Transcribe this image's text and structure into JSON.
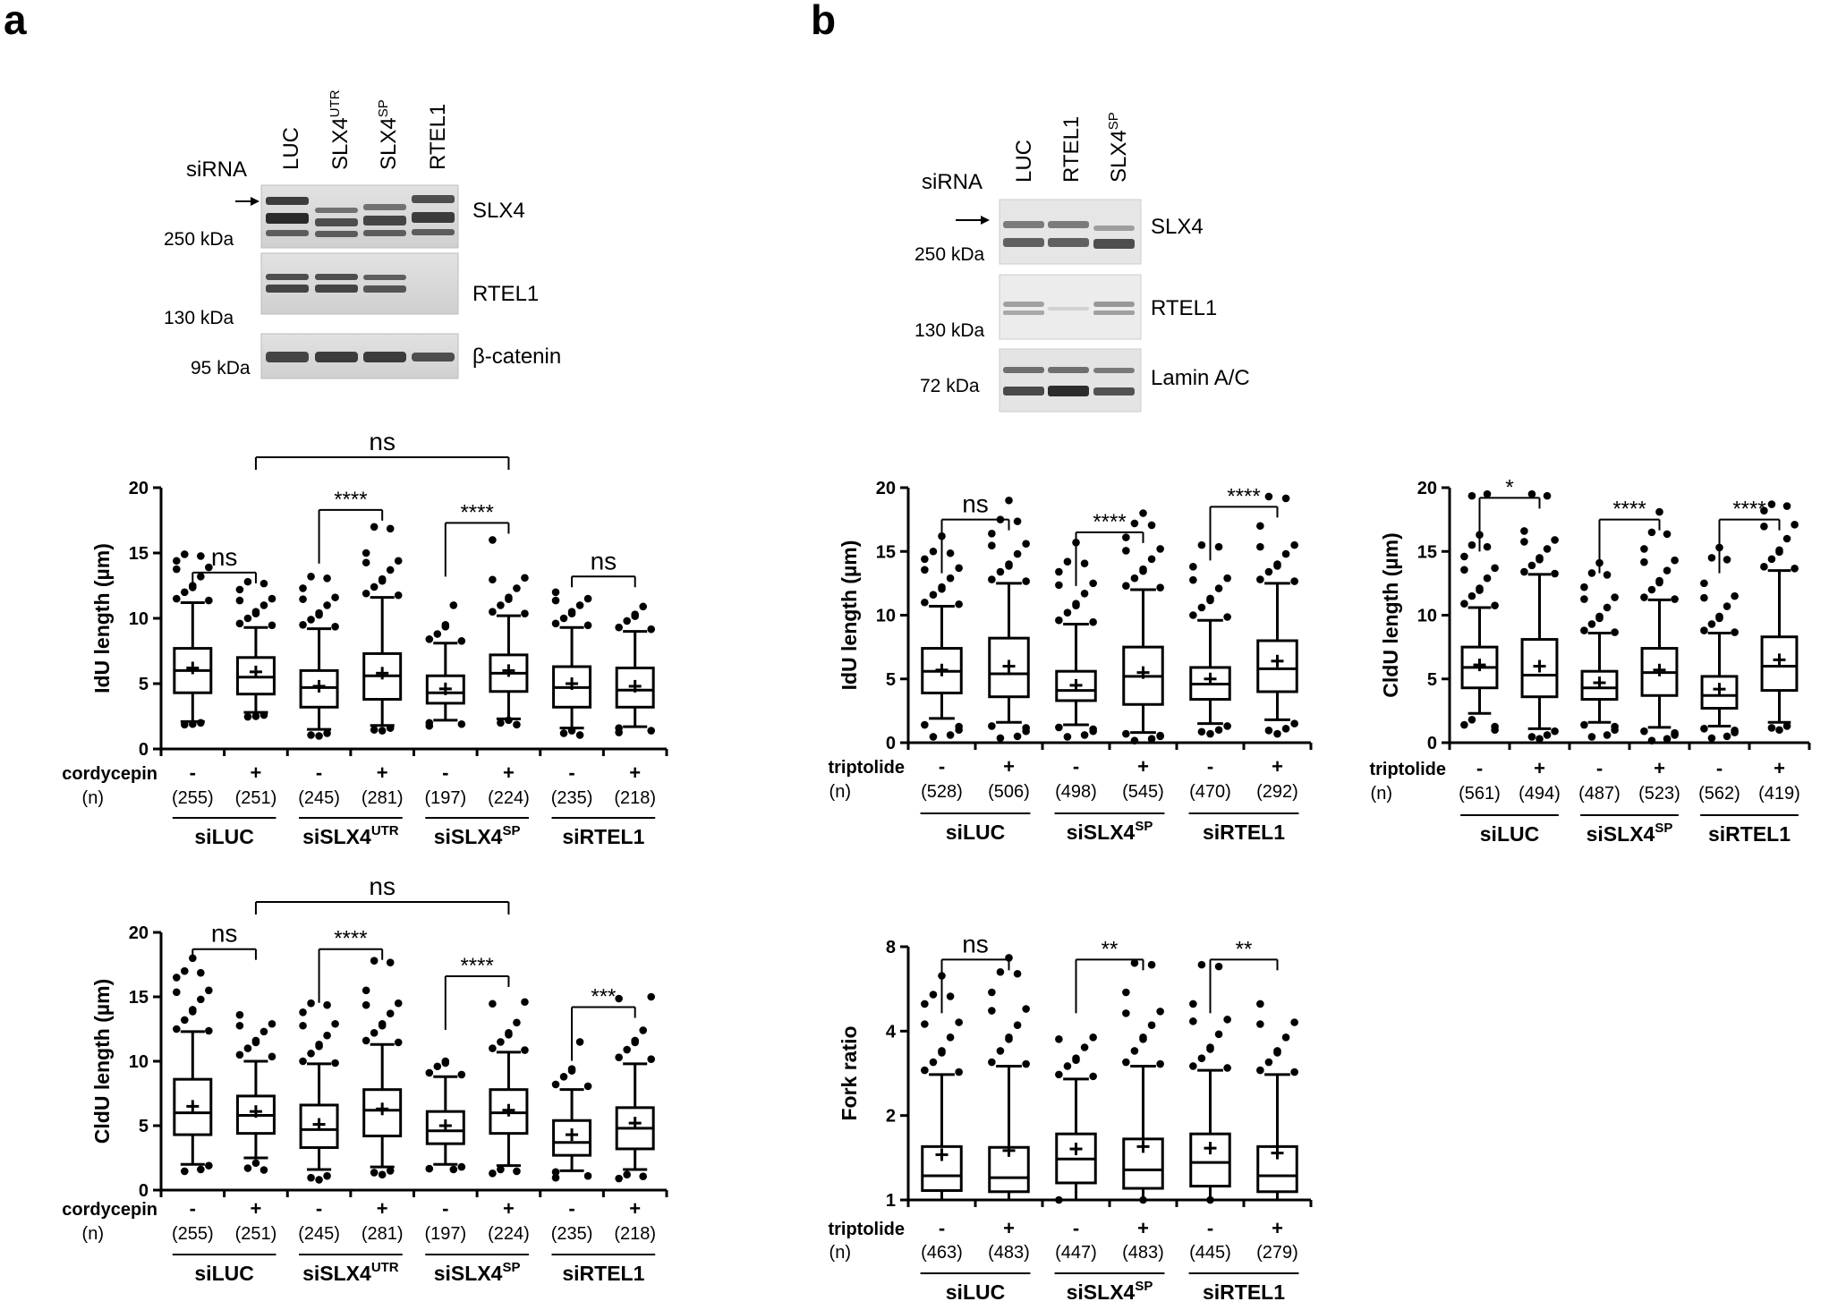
{
  "panel_a": {
    "letter": "a",
    "blot": {
      "row_label": "siRNA",
      "lanes": [
        "LUC",
        "SLX4",
        "SLX4",
        "RTEL1"
      ],
      "lane_sups": [
        "",
        "UTR",
        "SP",
        ""
      ],
      "bands": [
        "SLX4",
        "RTEL1",
        "β-catenin"
      ],
      "mw": [
        "250 kDa",
        "130 kDa",
        "95 kDa"
      ]
    }
  },
  "panel_b": {
    "letter": "b",
    "blot": {
      "row_label": "siRNA",
      "lanes": [
        "LUC",
        "RTEL1",
        "SLX4"
      ],
      "lane_sups": [
        "",
        "",
        "SP"
      ],
      "bands": [
        "SLX4",
        "RTEL1",
        "Lamin A/C"
      ],
      "mw": [
        "250 kDa",
        "130 kDa",
        "72 kDa"
      ]
    }
  },
  "chart_data": [
    {
      "id": "a-idu",
      "type": "box",
      "ylabel": "IdU length (µm)",
      "ylim": [
        0,
        20
      ],
      "yticks": [
        0,
        5,
        10,
        15,
        20
      ],
      "treatment_label": "cordycepin",
      "n_label": "(n)",
      "signs": [
        "-",
        "+",
        "-",
        "+",
        "-",
        "+",
        "-",
        "+"
      ],
      "n": [
        "(255)",
        "(251)",
        "(245)",
        "(281)",
        "(197)",
        "(224)",
        "(235)",
        "(218)"
      ],
      "groups": [
        {
          "name": "siLUC",
          "sup": ""
        },
        {
          "name": "siSLX4",
          "sup": "UTR"
        },
        {
          "name": "siSLX4",
          "sup": "SP"
        },
        {
          "name": "siRTEL1",
          "sup": ""
        }
      ],
      "boxes": [
        {
          "lw": 2.1,
          "q1": 4.3,
          "med": 6.0,
          "q3": 7.7,
          "uw": 11.2,
          "mean": 6.2
        },
        {
          "lw": 2.8,
          "q1": 4.2,
          "med": 5.5,
          "q3": 7.0,
          "uw": 9.3,
          "mean": 5.9
        },
        {
          "lw": 1.5,
          "q1": 3.2,
          "med": 4.7,
          "q3": 6.0,
          "uw": 9.2,
          "mean": 4.8
        },
        {
          "lw": 1.8,
          "q1": 3.8,
          "med": 5.6,
          "q3": 7.3,
          "uw": 11.6,
          "mean": 5.8
        },
        {
          "lw": 2.2,
          "q1": 3.5,
          "med": 4.3,
          "q3": 5.6,
          "uw": 8.1,
          "mean": 4.6
        },
        {
          "lw": 2.3,
          "q1": 4.4,
          "med": 5.8,
          "q3": 7.2,
          "uw": 10.2,
          "mean": 6.0
        },
        {
          "lw": 1.6,
          "q1": 3.2,
          "med": 4.7,
          "q3": 6.3,
          "uw": 9.3,
          "mean": 5.0
        },
        {
          "lw": 1.7,
          "q1": 3.2,
          "med": 4.5,
          "q3": 6.2,
          "uw": 9.0,
          "mean": 4.8
        }
      ],
      "outliers_hi": [
        [
          11.5,
          12.0,
          12.5,
          13.2,
          13.9,
          14.4,
          14.9
        ],
        [
          9.6,
          10.0,
          10.5,
          11.0,
          11.5,
          12.2,
          12.8
        ],
        [
          9.5,
          9.9,
          10.4,
          11.0,
          11.6,
          12.3,
          13.2
        ],
        [
          11.9,
          12.4,
          13.0,
          13.7,
          14.4,
          15.0,
          17.0
        ],
        [
          8.4,
          8.8,
          9.5,
          11.0
        ],
        [
          10.5,
          11.0,
          11.6,
          12.3,
          13.1,
          16.0
        ],
        [
          9.6,
          10.0,
          10.5,
          11.0,
          11.5,
          12.0
        ],
        [
          9.3,
          9.8,
          10.3,
          10.9
        ]
      ],
      "outliers_lo": [
        [
          1.9,
          2.0
        ],
        [
          2.5,
          2.6
        ],
        [
          1.0,
          1.2
        ],
        [
          1.4,
          1.6
        ],
        [
          1.9,
          2.0
        ],
        [
          2.0,
          2.2
        ],
        [
          1.2,
          1.4
        ],
        [
          1.4,
          1.6
        ]
      ],
      "sig": [
        {
          "a": 0,
          "b": 1,
          "label": "ns",
          "y": 13.5,
          "kind": "pair"
        },
        {
          "a": 2,
          "b": 3,
          "label": "****",
          "y": 18.3,
          "kind": "bracket"
        },
        {
          "a": 4,
          "b": 5,
          "label": "****",
          "y": 17.3,
          "kind": "bracket"
        },
        {
          "a": 6,
          "b": 7,
          "label": "ns",
          "y": 13.2,
          "kind": "pair"
        },
        {
          "a": 1,
          "b": 5,
          "label": "ns",
          "y": 21.5,
          "kind": "long"
        }
      ]
    },
    {
      "id": "a-cldu",
      "type": "box",
      "ylabel": "CldU length (µm)",
      "ylim": [
        0,
        20
      ],
      "yticks": [
        0,
        5,
        10,
        15,
        20
      ],
      "treatment_label": "cordycepin",
      "n_label": "(n)",
      "signs": [
        "-",
        "+",
        "-",
        "+",
        "-",
        "+",
        "-",
        "+"
      ],
      "n": [
        "(255)",
        "(251)",
        "(245)",
        "(281)",
        "(197)",
        "(224)",
        "(235)",
        "(218)"
      ],
      "groups": [
        {
          "name": "siLUC",
          "sup": ""
        },
        {
          "name": "siSLX4",
          "sup": "UTR"
        },
        {
          "name": "siSLX4",
          "sup": "SP"
        },
        {
          "name": "siRTEL1",
          "sup": ""
        }
      ],
      "boxes": [
        {
          "lw": 2.0,
          "q1": 4.3,
          "med": 6.0,
          "q3": 8.6,
          "uw": 12.3,
          "mean": 6.5
        },
        {
          "lw": 2.5,
          "q1": 4.4,
          "med": 5.8,
          "q3": 7.3,
          "uw": 10.0,
          "mean": 6.1
        },
        {
          "lw": 1.6,
          "q1": 3.3,
          "med": 4.7,
          "q3": 6.6,
          "uw": 9.8,
          "mean": 5.1
        },
        {
          "lw": 1.8,
          "q1": 4.2,
          "med": 6.2,
          "q3": 7.8,
          "uw": 11.3,
          "mean": 6.3
        },
        {
          "lw": 2.0,
          "q1": 3.6,
          "med": 4.6,
          "q3": 6.1,
          "uw": 8.8,
          "mean": 5.0
        },
        {
          "lw": 1.9,
          "q1": 4.4,
          "med": 6.0,
          "q3": 7.8,
          "uw": 10.7,
          "mean": 6.2
        },
        {
          "lw": 1.5,
          "q1": 2.7,
          "med": 3.7,
          "q3": 5.4,
          "uw": 7.8,
          "mean": 4.3
        },
        {
          "lw": 1.6,
          "q1": 3.2,
          "med": 4.8,
          "q3": 6.4,
          "uw": 9.8,
          "mean": 5.2
        }
      ],
      "outliers_hi": [
        [
          12.5,
          13.2,
          14.0,
          14.8,
          15.5,
          16.5,
          17.0,
          18.0
        ],
        [
          10.5,
          11.0,
          11.6,
          12.3,
          12.9,
          13.6
        ],
        [
          10.0,
          10.6,
          11.3,
          12.0,
          12.9,
          13.8,
          14.5
        ],
        [
          11.6,
          12.2,
          12.9,
          13.7,
          14.5,
          15.5,
          17.8
        ],
        [
          9.1,
          9.6,
          10.0
        ],
        [
          11.0,
          11.5,
          12.2,
          13.0,
          14.6
        ],
        [
          8.2,
          8.8,
          9.4,
          11.5
        ],
        [
          10.3,
          10.9,
          11.6,
          12.4,
          15.0
        ]
      ],
      "outliers_lo": [
        [
          1.6,
          1.9
        ],
        [
          1.7,
          2.1
        ],
        [
          0.8,
          1.1
        ],
        [
          1.2,
          1.5
        ],
        [
          1.6,
          1.8
        ],
        [
          1.3,
          1.6
        ],
        [
          1.1,
          1.4
        ],
        [
          0.9,
          1.2
        ]
      ],
      "sig": [
        {
          "a": 0,
          "b": 1,
          "label": "ns",
          "y": 18.7,
          "kind": "pair"
        },
        {
          "a": 2,
          "b": 3,
          "label": "****",
          "y": 18.7,
          "kind": "bracket"
        },
        {
          "a": 4,
          "b": 5,
          "label": "****",
          "y": 16.6,
          "kind": "bracket"
        },
        {
          "a": 6,
          "b": 7,
          "label": "***",
          "y": 14.2,
          "kind": "bracket"
        },
        {
          "a": 1,
          "b": 5,
          "label": "ns",
          "y": 21.5,
          "kind": "long"
        }
      ]
    },
    {
      "id": "b-idu",
      "type": "box",
      "ylabel": "IdU length (µm)",
      "ylim": [
        0,
        20
      ],
      "yticks": [
        0,
        5,
        10,
        15,
        20
      ],
      "treatment_label": "triptolide",
      "n_label": "(n)",
      "signs": [
        "-",
        "+",
        "-",
        "+",
        "-",
        "+"
      ],
      "n": [
        "(528)",
        "(506)",
        "(498)",
        "(545)",
        "(470)",
        "(292)"
      ],
      "groups": [
        {
          "name": "siLUC",
          "sup": ""
        },
        {
          "name": "siSLX4",
          "sup": "SP"
        },
        {
          "name": "siRTEL1",
          "sup": ""
        }
      ],
      "boxes": [
        {
          "lw": 1.9,
          "q1": 3.9,
          "med": 5.6,
          "q3": 7.4,
          "uw": 10.7,
          "mean": 5.7
        },
        {
          "lw": 1.6,
          "q1": 3.6,
          "med": 5.4,
          "q3": 8.2,
          "uw": 12.5,
          "mean": 6.0
        },
        {
          "lw": 1.4,
          "q1": 3.3,
          "med": 4.1,
          "q3": 5.6,
          "uw": 9.3,
          "mean": 4.5
        },
        {
          "lw": 0.8,
          "q1": 3.0,
          "med": 5.2,
          "q3": 7.5,
          "uw": 12.0,
          "mean": 5.5
        },
        {
          "lw": 1.5,
          "q1": 3.4,
          "med": 4.6,
          "q3": 5.9,
          "uw": 9.6,
          "mean": 5.0
        },
        {
          "lw": 1.8,
          "q1": 4.0,
          "med": 5.8,
          "q3": 8.0,
          "uw": 12.5,
          "mean": 6.4
        }
      ],
      "outliers_hi": [
        [
          11.0,
          11.6,
          12.2,
          12.9,
          13.7,
          14.4,
          15.0,
          16.2
        ],
        [
          12.8,
          13.4,
          14.0,
          14.8,
          15.6,
          16.4,
          17.5,
          19.0
        ],
        [
          9.6,
          10.2,
          10.9,
          11.7,
          12.5,
          13.4,
          14.2,
          15.7
        ],
        [
          12.3,
          12.9,
          13.6,
          14.4,
          15.2,
          16.1,
          17.2,
          18.0
        ],
        [
          10.0,
          10.6,
          11.3,
          12.1,
          12.9,
          13.8,
          15.5
        ],
        [
          12.8,
          13.4,
          14.0,
          14.8,
          15.5,
          17.0,
          19.3
        ]
      ],
      "outliers_lo": [
        [
          0.6,
          1.0,
          1.4
        ],
        [
          0.5,
          0.9,
          1.3
        ],
        [
          0.6,
          0.9,
          1.2
        ],
        [
          0.3,
          0.5,
          0.7
        ],
        [
          0.7,
          1.0,
          1.3
        ],
        [
          0.7,
          1.1,
          1.5
        ]
      ],
      "sig": [
        {
          "a": 0,
          "b": 1,
          "label": "ns",
          "y": 17.5,
          "kind": "bracket"
        },
        {
          "a": 2,
          "b": 3,
          "label": "****",
          "y": 16.5,
          "kind": "bracket"
        },
        {
          "a": 4,
          "b": 5,
          "label": "****",
          "y": 18.5,
          "kind": "bracket"
        }
      ]
    },
    {
      "id": "b-cldu",
      "type": "box",
      "ylabel": "CldU length (µm)",
      "ylim": [
        0,
        20
      ],
      "yticks": [
        0,
        5,
        10,
        15,
        20
      ],
      "treatment_label": "triptolide",
      "n_label": "(n)",
      "signs": [
        "-",
        "+",
        "-",
        "+",
        "-",
        "+"
      ],
      "n": [
        "(561)",
        "(494)",
        "(487)",
        "(523)",
        "(562)",
        "(419)"
      ],
      "groups": [
        {
          "name": "siLUC",
          "sup": ""
        },
        {
          "name": "siSLX4",
          "sup": "SP"
        },
        {
          "name": "siRTEL1",
          "sup": ""
        }
      ],
      "boxes": [
        {
          "lw": 2.3,
          "q1": 4.3,
          "med": 5.9,
          "q3": 7.5,
          "uw": 10.6,
          "mean": 6.1
        },
        {
          "lw": 1.1,
          "q1": 3.6,
          "med": 5.3,
          "q3": 8.1,
          "uw": 13.2,
          "mean": 6.0
        },
        {
          "lw": 1.6,
          "q1": 3.4,
          "med": 4.3,
          "q3": 5.6,
          "uw": 8.6,
          "mean": 4.7
        },
        {
          "lw": 1.2,
          "q1": 3.7,
          "med": 5.5,
          "q3": 7.4,
          "uw": 11.2,
          "mean": 5.7
        },
        {
          "lw": 1.3,
          "q1": 2.7,
          "med": 3.7,
          "q3": 5.2,
          "uw": 8.6,
          "mean": 4.2
        },
        {
          "lw": 1.6,
          "q1": 4.1,
          "med": 6.0,
          "q3": 8.3,
          "uw": 13.5,
          "mean": 6.5
        }
      ],
      "outliers_hi": [
        [
          10.9,
          11.5,
          12.1,
          12.9,
          13.7,
          14.6,
          15.5,
          16.3,
          19.5
        ],
        [
          13.4,
          13.9,
          14.5,
          15.2,
          15.9,
          16.6,
          19.5
        ],
        [
          8.8,
          9.3,
          9.9,
          10.6,
          11.4,
          12.2,
          13.3,
          14.1
        ],
        [
          11.4,
          12.0,
          12.7,
          13.5,
          14.3,
          15.2,
          16.5,
          18.1
        ],
        [
          8.8,
          9.3,
          9.9,
          10.7,
          11.5,
          12.5,
          14.5,
          15.3
        ],
        [
          13.8,
          14.4,
          15.1,
          16.0,
          17.1,
          18.2,
          18.7
        ]
      ],
      "outliers_lo": [
        [
          1.0,
          1.4,
          1.8
        ],
        [
          0.3,
          0.6,
          0.9
        ],
        [
          0.6,
          1.0,
          1.4
        ],
        [
          0.3,
          0.6,
          0.9
        ],
        [
          0.5,
          0.8,
          1.1
        ],
        [
          1.0,
          1.3
        ]
      ],
      "sig": [
        {
          "a": 0,
          "b": 1,
          "label": "*",
          "y": 19.2,
          "kind": "bracket"
        },
        {
          "a": 2,
          "b": 3,
          "label": "****",
          "y": 17.5,
          "kind": "bracket"
        },
        {
          "a": 4,
          "b": 5,
          "label": "****",
          "y": 17.5,
          "kind": "bracket"
        }
      ]
    },
    {
      "id": "b-fork",
      "type": "box",
      "ylabel": "Fork ratio",
      "scale": "log2",
      "ylim": [
        1,
        8
      ],
      "yticks": [
        1,
        2,
        4,
        8
      ],
      "treatment_label": "triptolide",
      "n_label": "(n)",
      "signs": [
        "-",
        "+",
        "-",
        "+",
        "-",
        "+"
      ],
      "n": [
        "(463)",
        "(483)",
        "(447)",
        "(483)",
        "(445)",
        "(279)"
      ],
      "groups": [
        {
          "name": "siLUC",
          "sup": ""
        },
        {
          "name": "siSLX4",
          "sup": "SP"
        },
        {
          "name": "siRTEL1",
          "sup": ""
        }
      ],
      "boxes": [
        {
          "lw": 1.0,
          "q1": 1.08,
          "med": 1.22,
          "q3": 1.55,
          "uw": 2.8,
          "mean": 1.45
        },
        {
          "lw": 1.0,
          "q1": 1.07,
          "med": 1.2,
          "q3": 1.54,
          "uw": 3.0,
          "mean": 1.5
        },
        {
          "lw": 1.0,
          "q1": 1.15,
          "med": 1.4,
          "q3": 1.72,
          "uw": 2.7,
          "mean": 1.52
        },
        {
          "lw": 1.0,
          "q1": 1.1,
          "med": 1.28,
          "q3": 1.65,
          "uw": 3.0,
          "mean": 1.55
        },
        {
          "lw": 1.0,
          "q1": 1.12,
          "med": 1.36,
          "q3": 1.72,
          "uw": 2.9,
          "mean": 1.53
        },
        {
          "lw": 1.0,
          "q1": 1.07,
          "med": 1.22,
          "q3": 1.55,
          "uw": 2.8,
          "mean": 1.47
        }
      ],
      "outliers_hi": [
        [
          2.9,
          3.1,
          3.4,
          3.8,
          4.3,
          5.0,
          5.4,
          6.3
        ],
        [
          3.1,
          3.4,
          3.8,
          4.2,
          4.8,
          5.5,
          6.5,
          7.3
        ],
        [
          2.8,
          3.0,
          3.2,
          3.5,
          3.8
        ],
        [
          3.1,
          3.4,
          3.8,
          4.2,
          4.7,
          5.5,
          7.0
        ],
        [
          3.0,
          3.2,
          3.5,
          3.9,
          4.4,
          5.0,
          6.9
        ],
        [
          2.9,
          3.1,
          3.4,
          3.8,
          4.3,
          5.0
        ]
      ],
      "outliers_lo": [
        [],
        [],
        [
          1.0
        ],
        [
          1.0
        ],
        [
          1.0
        ],
        []
      ],
      "sig": [
        {
          "a": 0,
          "b": 1,
          "label": "ns",
          "y": 7.2,
          "kind": "bracket"
        },
        {
          "a": 2,
          "b": 3,
          "label": "**",
          "y": 7.2,
          "kind": "bracket"
        },
        {
          "a": 4,
          "b": 5,
          "label": "**",
          "y": 7.2,
          "kind": "bracket"
        }
      ]
    }
  ]
}
